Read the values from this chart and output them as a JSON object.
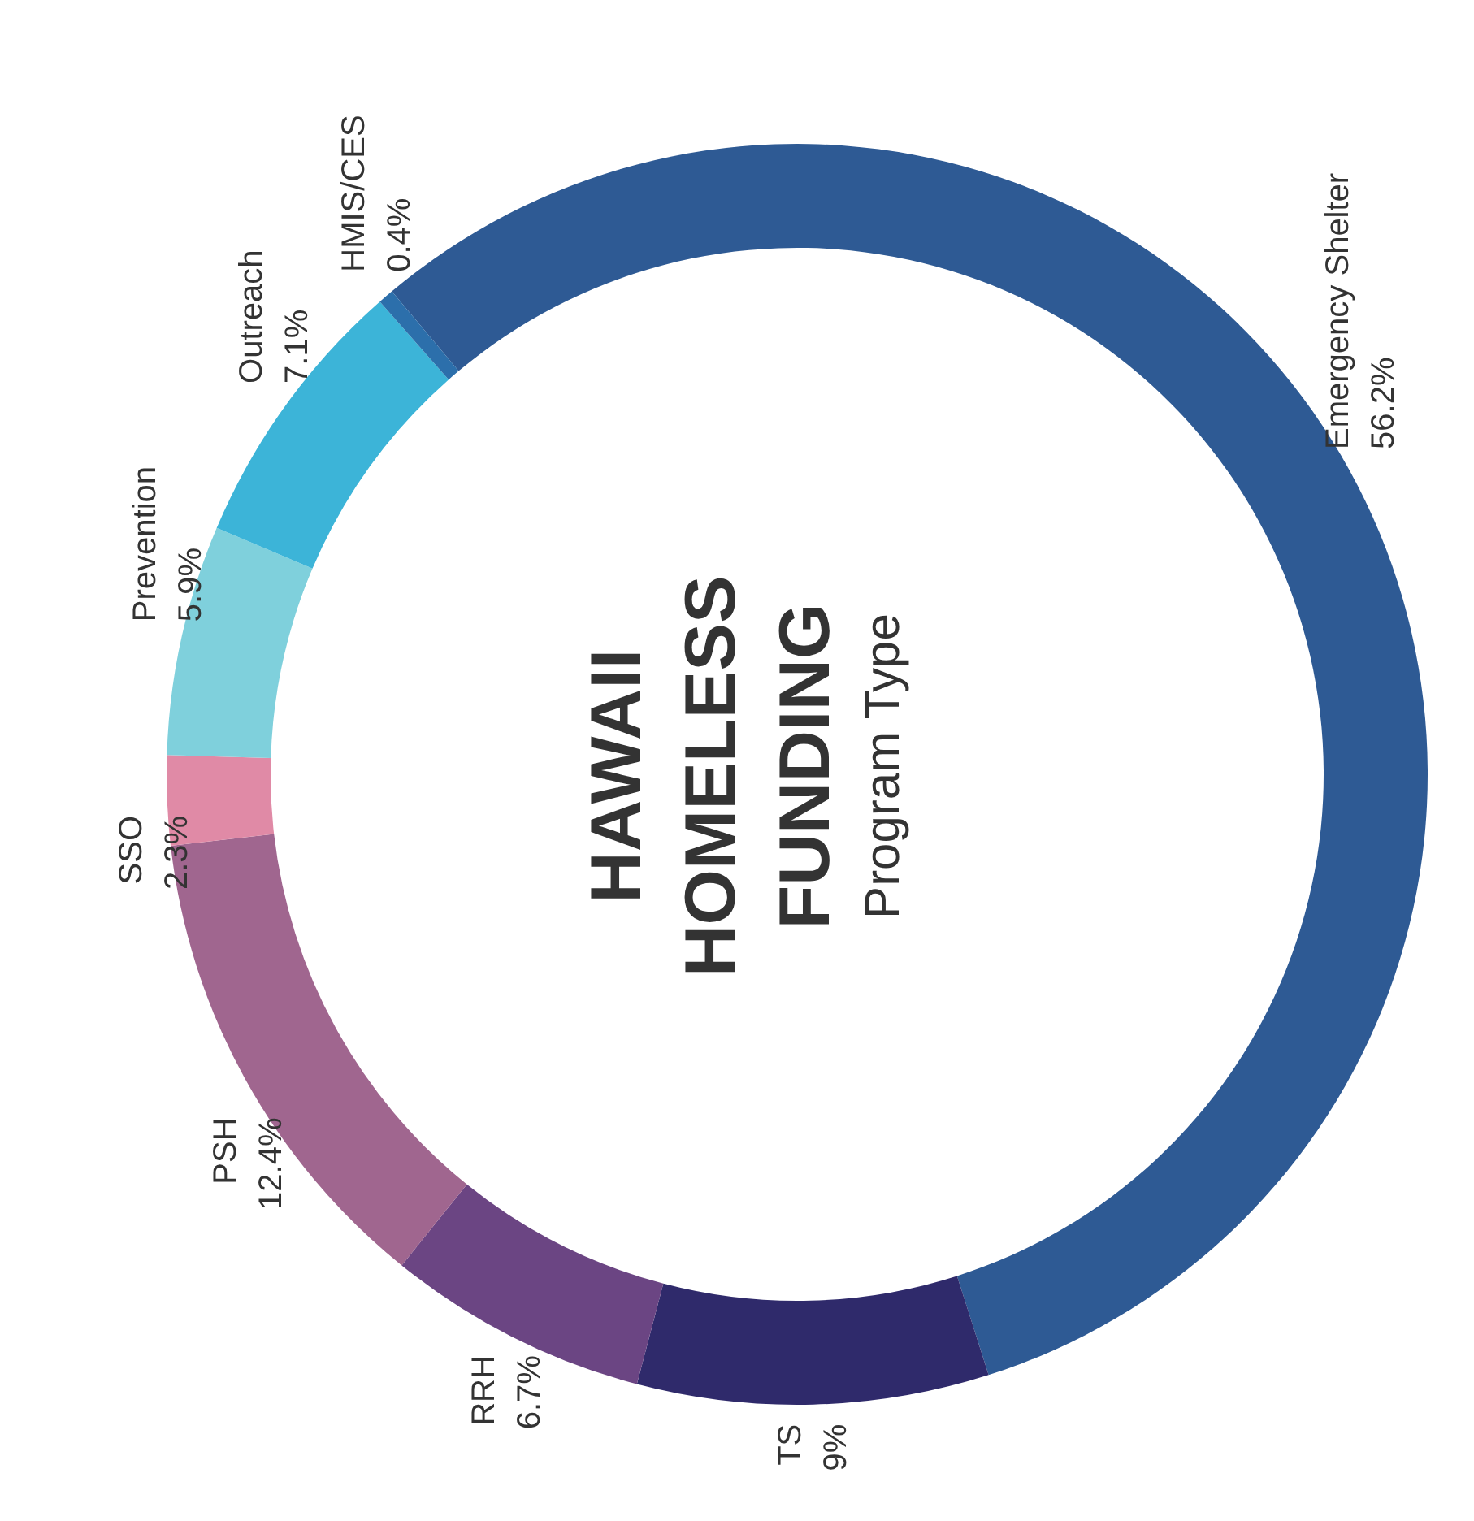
{
  "chart_data": {
    "type": "donut",
    "title": "HAWAII HOMELESS FUNDING",
    "subtitle": "Program Type",
    "categories": [
      "Emergency Shelter",
      "TS",
      "RRH",
      "PSH",
      "SSO",
      "Prevention",
      "Outreach",
      "HMIS/CES"
    ],
    "values": [
      56.2,
      9,
      6.7,
      12.4,
      2.3,
      5.9,
      7.1,
      0.4
    ],
    "value_labels": [
      "56.2%",
      "9%",
      "6.7%",
      "12.4%",
      "2.3%",
      "5.9%",
      "7.1%",
      "0.4%"
    ],
    "colors": [
      "#2e5a94",
      "#2f2a6b",
      "#6b4583",
      "#a0668f",
      "#e08aa6",
      "#7fd0dc",
      "#3cb4d8",
      "#2c6fab"
    ],
    "legend": false
  }
}
